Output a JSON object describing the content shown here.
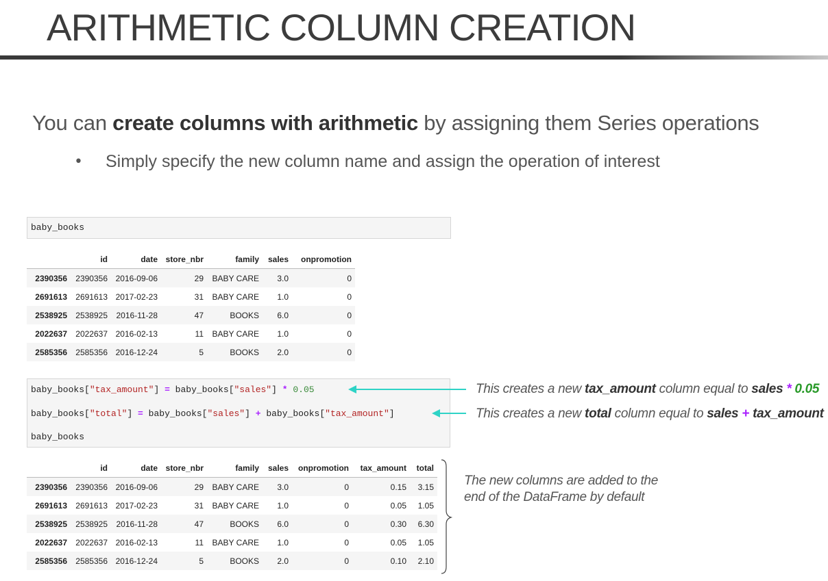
{
  "title": "ARITHMETIC COLUMN CREATION",
  "subtitle": {
    "pre": "You can ",
    "bold": "create columns with arithmetic",
    "post": " by assigning them Series operations"
  },
  "bullet": {
    "symbol": "•",
    "text": "Simply specify the new column name and assign the operation of interest"
  },
  "cell1": {
    "code": "baby_books"
  },
  "table1": {
    "columns": [
      "",
      "id",
      "date",
      "store_nbr",
      "family",
      "sales",
      "onpromotion"
    ],
    "rows": [
      [
        "2390356",
        "2390356",
        "2016-09-06",
        "29",
        "BABY CARE",
        "3.0",
        "0"
      ],
      [
        "2691613",
        "2691613",
        "2017-02-23",
        "31",
        "BABY CARE",
        "1.0",
        "0"
      ],
      [
        "2538925",
        "2538925",
        "2016-11-28",
        "47",
        "BOOKS",
        "6.0",
        "0"
      ],
      [
        "2022637",
        "2022637",
        "2016-02-13",
        "11",
        "BABY CARE",
        "1.0",
        "0"
      ],
      [
        "2585356",
        "2585356",
        "2016-12-24",
        "5",
        "BOOKS",
        "2.0",
        "0"
      ]
    ]
  },
  "cell2": {
    "line1": {
      "a": "baby_books[",
      "s1": "\"tax_amount\"",
      "b": "] ",
      "op1": "=",
      "c": " baby_books[",
      "s2": "\"sales\"",
      "d": "] ",
      "op2": "*",
      "e": " ",
      "num": "0.05"
    },
    "line2": {
      "a": "baby_books[",
      "s1": "\"total\"",
      "b": "] ",
      "op1": "=",
      "c": " baby_books[",
      "s2": "\"sales\"",
      "d": "] ",
      "op2": "+",
      "e": " baby_books[",
      "s3": "\"tax_amount\"",
      "f": "]"
    },
    "line3": "baby_books"
  },
  "annotations": {
    "note1": {
      "a": "This creates a new ",
      "b": "tax_amount",
      "c": " column equal to ",
      "d": "sales",
      "op": " * ",
      "num": "0.05"
    },
    "note2": {
      "a": "This creates a new ",
      "b": "total",
      "c": " column equal to ",
      "d": "sales",
      "op": " + ",
      "e": "tax_amount"
    },
    "note3": {
      "line1": "The new columns are added to the",
      "line2": "end of the DataFrame by default"
    },
    "arrow_color": "#2ed3c6"
  },
  "table2": {
    "columns": [
      "",
      "id",
      "date",
      "store_nbr",
      "family",
      "sales",
      "onpromotion",
      "tax_amount",
      "total"
    ],
    "rows": [
      [
        "2390356",
        "2390356",
        "2016-09-06",
        "29",
        "BABY CARE",
        "3.0",
        "0",
        "0.15",
        "3.15"
      ],
      [
        "2691613",
        "2691613",
        "2017-02-23",
        "31",
        "BABY CARE",
        "1.0",
        "0",
        "0.05",
        "1.05"
      ],
      [
        "2538925",
        "2538925",
        "2016-11-28",
        "47",
        "BOOKS",
        "6.0",
        "0",
        "0.30",
        "6.30"
      ],
      [
        "2022637",
        "2022637",
        "2016-02-13",
        "11",
        "BABY CARE",
        "1.0",
        "0",
        "0.05",
        "1.05"
      ],
      [
        "2585356",
        "2585356",
        "2016-12-24",
        "5",
        "BOOKS",
        "2.0",
        "0",
        "0.10",
        "2.10"
      ]
    ]
  }
}
